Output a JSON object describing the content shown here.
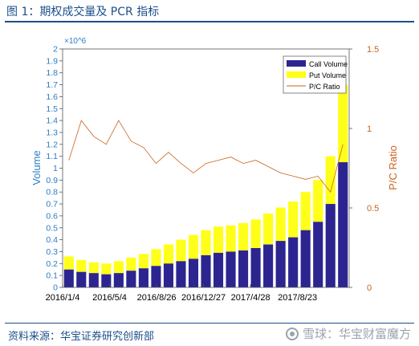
{
  "figure": {
    "title": "图 1：期权成交量及 PCR 指标",
    "source": "资料来源：华宝证券研究创新部",
    "watermark": "雪球：华宝财富魔方"
  },
  "colors": {
    "call": "#2c2590",
    "put": "#ffff19",
    "ratio": "#c9641c",
    "left_axis": "#2b7cc6",
    "right_axis": "#c9641c",
    "header": "#1b4f8a"
  },
  "chart_data": {
    "type": "bar",
    "title": "",
    "xlabel": "",
    "ylabel_left": "Volume",
    "ylabel_right": "P/C Ratio",
    "y_left_multiplier": "×10^6",
    "y_left_lim": [
      0,
      2
    ],
    "y_left_ticks": [
      "0",
      "0.1",
      "0.2",
      "0.3",
      "0.4",
      "0.5",
      "0.6",
      "0.7",
      "0.8",
      "0.9",
      "1",
      "1.1",
      "1.2",
      "1.3",
      "1.4",
      "1.5",
      "1.6",
      "1.7",
      "1.8",
      "1.9",
      "2"
    ],
    "y_right_lim": [
      0,
      1.5
    ],
    "y_right_ticks": [
      "0",
      "0.5",
      "1",
      "1.5"
    ],
    "x_tick_labels": [
      "2016/1/4",
      "2016/5/4",
      "2016/8/26",
      "2016/12/27",
      "2017/4/28",
      "2017/8/23"
    ],
    "legend_position": "top-right",
    "grid": false,
    "series": [
      {
        "name": "Call Volume",
        "type": "bar",
        "stacked": true,
        "values_millions": [
          0.15,
          0.13,
          0.12,
          0.11,
          0.12,
          0.14,
          0.16,
          0.18,
          0.2,
          0.22,
          0.24,
          0.27,
          0.29,
          0.3,
          0.31,
          0.33,
          0.36,
          0.39,
          0.42,
          0.48,
          0.55,
          0.7,
          1.05
        ]
      },
      {
        "name": "Put Volume",
        "type": "bar",
        "stacked": true,
        "values_millions": [
          0.11,
          0.1,
          0.09,
          0.09,
          0.1,
          0.11,
          0.12,
          0.14,
          0.16,
          0.18,
          0.2,
          0.21,
          0.22,
          0.22,
          0.23,
          0.24,
          0.26,
          0.28,
          0.3,
          0.32,
          0.35,
          0.4,
          0.65
        ]
      },
      {
        "name": "P/C Ratio",
        "type": "line",
        "axis": "right",
        "values": [
          0.8,
          1.05,
          0.95,
          0.9,
          1.05,
          0.92,
          0.88,
          0.78,
          0.85,
          0.78,
          0.72,
          0.78,
          0.8,
          0.82,
          0.78,
          0.8,
          0.76,
          0.72,
          0.7,
          0.68,
          0.7,
          0.6,
          0.9
        ]
      }
    ]
  }
}
